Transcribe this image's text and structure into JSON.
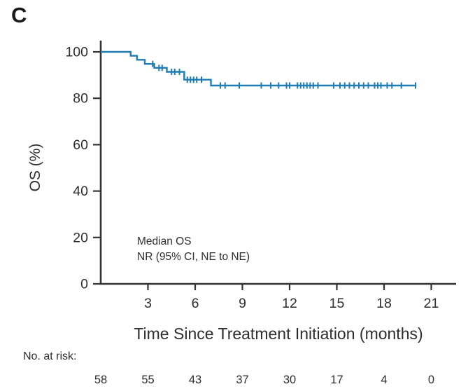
{
  "panel_label": "C",
  "colors": {
    "curve": "#1f7db2",
    "axis": "#333333",
    "text": "#2e2e2e"
  },
  "chart_data": {
    "type": "line",
    "subtype": "kaplan_meier_step",
    "title": "",
    "xlabel": "Time Since Treatment Initiation (months)",
    "ylabel": "OS (%)",
    "xlim": [
      0,
      21.8
    ],
    "ylim": [
      0,
      100
    ],
    "xticks": [
      3,
      6,
      9,
      12,
      15,
      18,
      21
    ],
    "yticks": [
      0,
      20,
      40,
      60,
      80,
      100
    ],
    "grid": false,
    "legend": "none",
    "series": [
      {
        "name": "OS",
        "color": "#1f7db2",
        "steps": [
          {
            "t_start": 0,
            "t_end": 1.9,
            "value": 100
          },
          {
            "t_start": 1.9,
            "t_end": 2.3,
            "value": 98.3
          },
          {
            "t_start": 2.3,
            "t_end": 2.8,
            "value": 96.6
          },
          {
            "t_start": 2.8,
            "t_end": 3.4,
            "value": 94.8
          },
          {
            "t_start": 3.4,
            "t_end": 4.2,
            "value": 93.1
          },
          {
            "t_start": 4.2,
            "t_end": 5.3,
            "value": 91.4
          },
          {
            "t_start": 5.3,
            "t_end": 7.0,
            "value": 88.0
          },
          {
            "t_start": 7.0,
            "t_end": 20.0,
            "value": 85.5
          }
        ],
        "censor_times": [
          3.3,
          3.7,
          3.9,
          4.5,
          4.7,
          5.0,
          5.5,
          5.7,
          5.9,
          6.1,
          6.4,
          7.6,
          7.9,
          8.8,
          10.2,
          10.8,
          11.3,
          11.8,
          12.0,
          12.5,
          12.7,
          12.9,
          13.1,
          13.3,
          13.5,
          13.8,
          14.8,
          15.2,
          15.5,
          15.8,
          16.1,
          16.4,
          16.7,
          17.0,
          17.4,
          17.6,
          17.8,
          18.2,
          18.5,
          19.1,
          20.0
        ]
      }
    ],
    "annotation": {
      "line1": "Median OS",
      "line2": "NR (95% CI, NE to NE)"
    },
    "at_risk": {
      "label": "No. at risk:",
      "times": [
        0,
        3,
        6,
        9,
        12,
        15,
        18,
        21
      ],
      "counts": [
        58,
        55,
        43,
        37,
        30,
        17,
        4,
        0
      ]
    }
  }
}
